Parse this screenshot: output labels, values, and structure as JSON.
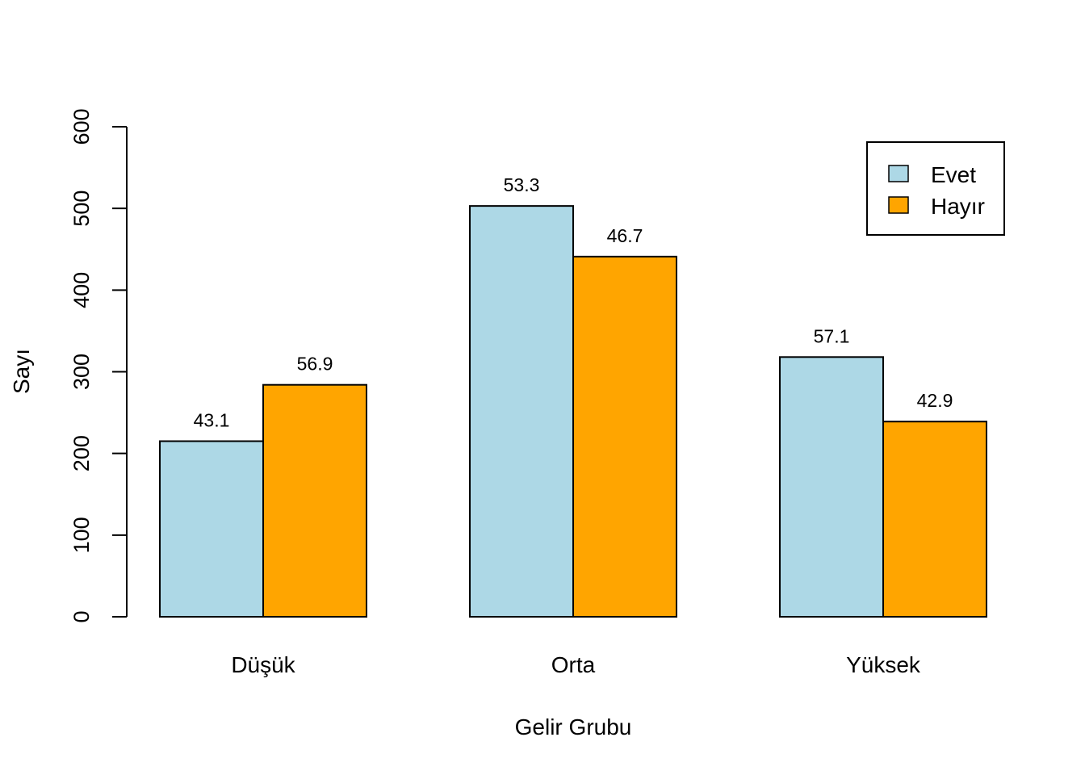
{
  "chart_data": {
    "type": "bar",
    "layout": "grouped",
    "title": "",
    "xlabel": "Gelir Grubu",
    "ylabel": "Sayı",
    "ylim": [
      0,
      600
    ],
    "yticks": [
      0,
      100,
      200,
      300,
      400,
      500,
      600
    ],
    "categories": [
      "Düşük",
      "Orta",
      "Yüksek"
    ],
    "series": [
      {
        "name": "Evet",
        "color": "#ADD8E6",
        "values": [
          215,
          503,
          318
        ],
        "labels": [
          "43.1",
          "53.3",
          "57.1"
        ]
      },
      {
        "name": "Hayır",
        "color": "#FFA500",
        "values": [
          284,
          441,
          239
        ],
        "labels": [
          "56.9",
          "46.7",
          "42.9"
        ]
      }
    ],
    "legend_position": "top-right",
    "grid": false
  }
}
